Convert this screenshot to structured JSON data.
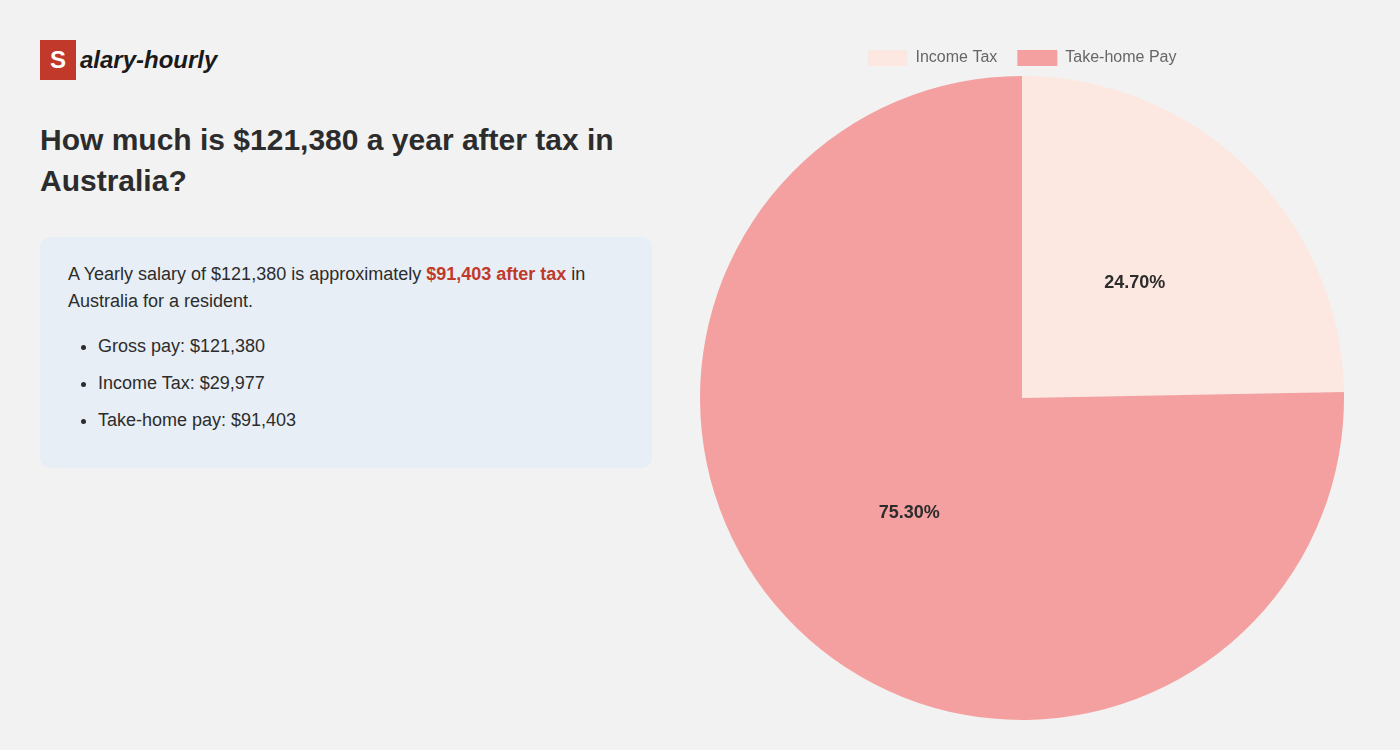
{
  "chart_data": {
    "type": "pie",
    "title": "How much is $121,380 a year after tax in\nAustralia?",
    "categories": [
      "Income Tax",
      "Take-home Pay"
    ],
    "values": [
      24.7,
      75.3
    ],
    "value_labels": [
      "24.70%",
      "75.30%"
    ],
    "data_labels": true,
    "colors": [
      "#fce8e0",
      "#f4a0a0"
    ],
    "legend": "top",
    "annotations": [
      "S",
      "alary-hourly",
      "A Yearly salary of $121,380 is approximately",
      "$91,403 after tax",
      "in Australia for a resident.",
      "Gross pay: $121,380",
      "Income Tax: $29,977",
      "Take-home pay: $91,403"
    ]
  }
}
